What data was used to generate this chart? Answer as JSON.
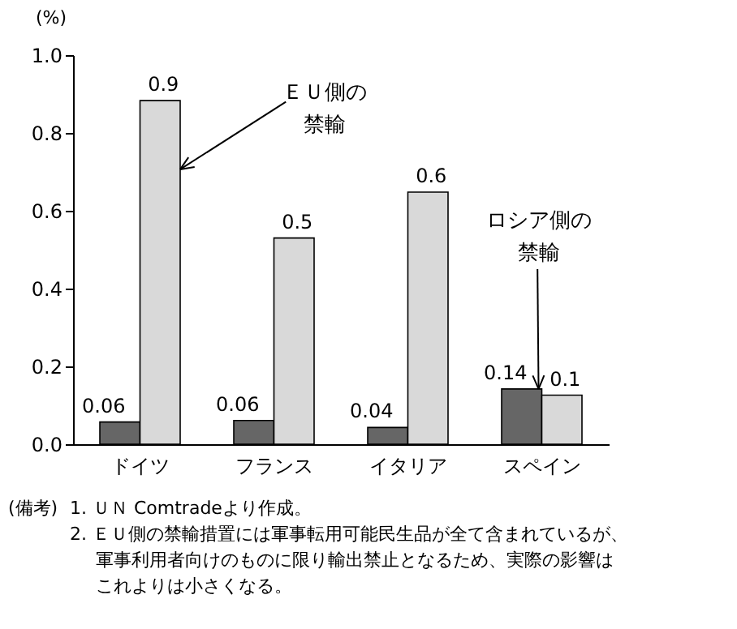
{
  "chart_data": {
    "type": "bar",
    "categories": [
      "ドイツ",
      "フランス",
      "イタリア",
      "スペイン"
    ],
    "series": [
      {
        "name": "ロシア側の禁輸",
        "color": "#666666",
        "values": [
          0.057,
          0.061,
          0.043,
          0.142
        ],
        "value_labels": [
          "0.06",
          "0.06",
          "0.04",
          "0.14"
        ]
      },
      {
        "name": "ＥＵ側の禁輸",
        "color": "#d9d9d9",
        "values": [
          0.883,
          0.53,
          0.648,
          0.126
        ],
        "value_labels": [
          "0.9",
          "0.5",
          "0.6",
          "0.1"
        ]
      }
    ],
    "ylabel": "(%)",
    "ylim": [
      0,
      1
    ],
    "yticks": [
      {
        "value": 0,
        "label": "0.0"
      },
      0.2,
      0.4,
      0.6,
      0.8,
      {
        "value": 1,
        "label": "1.0"
      }
    ],
    "annotations": [
      "(備考)",
      "1. ＵＮ Comtradeより作成。",
      "2. ＥＵ側の禁輸措置には軍事転用可能民生品が全て含まれているが、軍事利用者向けのものに限り輸出禁止となるため、実際の影響はこれよりは小さくなる。"
    ]
  }
}
